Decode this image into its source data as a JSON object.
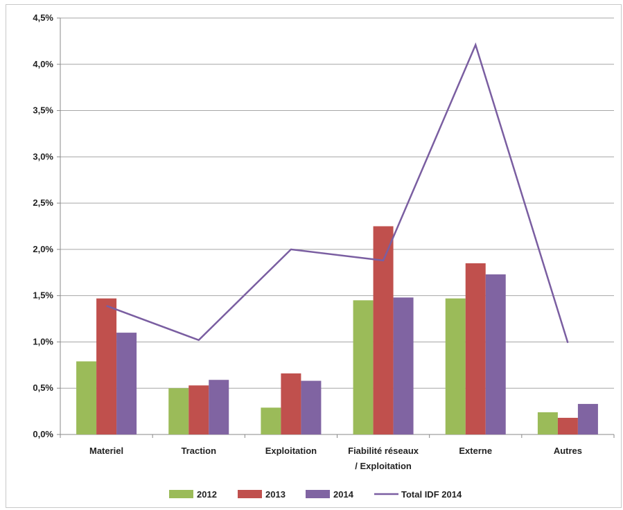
{
  "chart_data": {
    "type": "bar",
    "categories": [
      "Materiel",
      "Traction",
      "Exploitation",
      "Fiabilité réseaux / Exploitation",
      "Externe",
      "Autres"
    ],
    "category_lines": [
      [
        "Materiel"
      ],
      [
        "Traction"
      ],
      [
        "Exploitation"
      ],
      [
        "Fiabilité réseaux",
        "/ Exploitation"
      ],
      [
        "Externe"
      ],
      [
        "Autres"
      ]
    ],
    "series": [
      {
        "name": "2012",
        "type": "bar",
        "color": "#9bbb59",
        "values": [
          0.79,
          0.5,
          0.29,
          1.45,
          1.47,
          0.24
        ]
      },
      {
        "name": "2013",
        "type": "bar",
        "color": "#c0504d",
        "values": [
          1.47,
          0.53,
          0.66,
          2.25,
          1.85,
          0.18
        ]
      },
      {
        "name": "2014",
        "type": "bar",
        "color": "#8064a2",
        "values": [
          1.1,
          0.59,
          0.58,
          1.48,
          1.73,
          0.33
        ]
      },
      {
        "name": "Total IDF 2014",
        "type": "line",
        "color": "#7a5ea1",
        "values": [
          1.39,
          1.02,
          2.0,
          1.88,
          4.21,
          0.99
        ]
      }
    ],
    "yticks": [
      "0,0%",
      "0,5%",
      "1,0%",
      "1,5%",
      "2,0%",
      "2,5%",
      "3,0%",
      "3,5%",
      "4,0%",
      "4,5%"
    ],
    "ylim": [
      0,
      4.5
    ],
    "ystep": 0.5,
    "grid": true,
    "legend_position": "bottom",
    "title": "",
    "xlabel": "",
    "ylabel": ""
  }
}
